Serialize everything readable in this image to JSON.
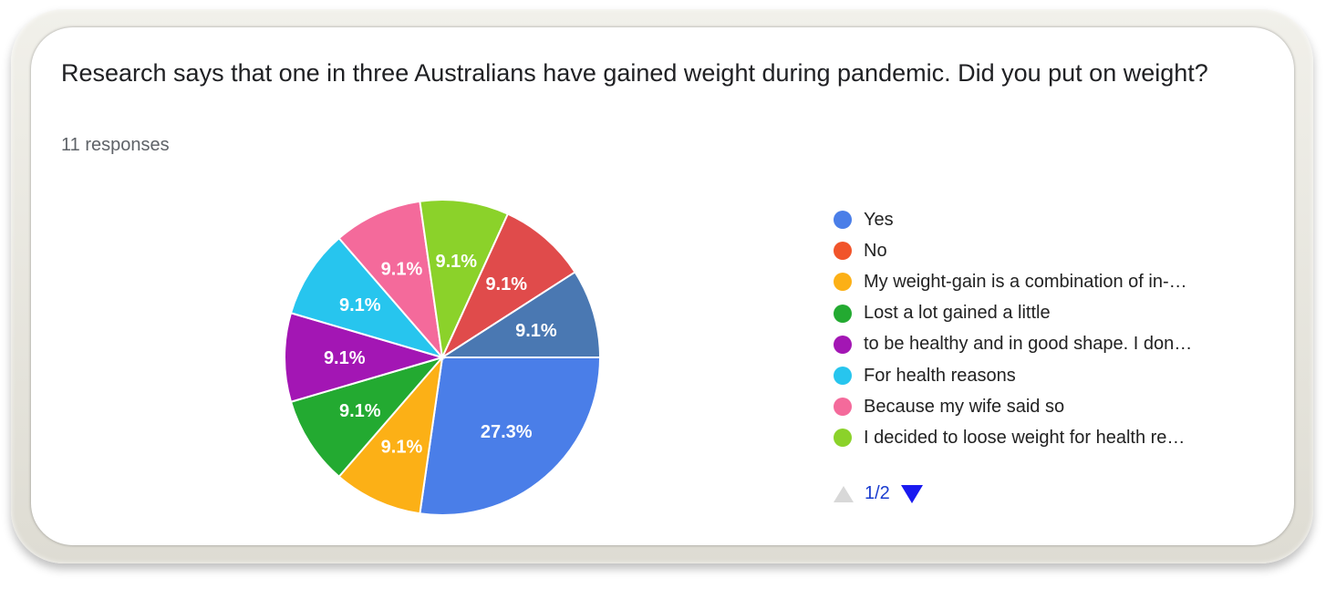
{
  "question": {
    "title": "Research says that one in three Australians have gained weight during pandemic. Did you put on weight?",
    "responses": "11 responses"
  },
  "pager": {
    "label": "1/2"
  },
  "chart_data": {
    "type": "pie",
    "slices": [
      {
        "label": "Yes",
        "value": 27.3,
        "display": "27.3%",
        "color": "#4a7ee8"
      },
      {
        "label": "No",
        "value": 0,
        "display": "",
        "color": "#f1542a"
      },
      {
        "label": "My weight-gain is a combination of in-…",
        "value": 9.1,
        "display": "9.1%",
        "color": "#fcb016"
      },
      {
        "label": "Lost a lot gained a little",
        "value": 9.1,
        "display": "9.1%",
        "color": "#23aa31"
      },
      {
        "label": "to be healthy and in good shape. I don…",
        "value": 9.1,
        "display": "9.1%",
        "color": "#a316b4"
      },
      {
        "label": "For health reasons",
        "value": 9.1,
        "display": "9.1%",
        "color": "#27c5ee"
      },
      {
        "label": "Because my wife said so",
        "value": 9.1,
        "display": "9.1%",
        "color": "#f46a9b"
      },
      {
        "label": "I decided to loose weight for health re…",
        "value": 9.1,
        "display": "9.1%",
        "color": "#8bd22a"
      },
      {
        "label": "",
        "value": 9.1,
        "display": "9.1%",
        "color": "#e04b4b"
      },
      {
        "label": "",
        "value": 9.1,
        "display": "9.1%",
        "color": "#4a78b2"
      }
    ],
    "legend_position": "right"
  }
}
